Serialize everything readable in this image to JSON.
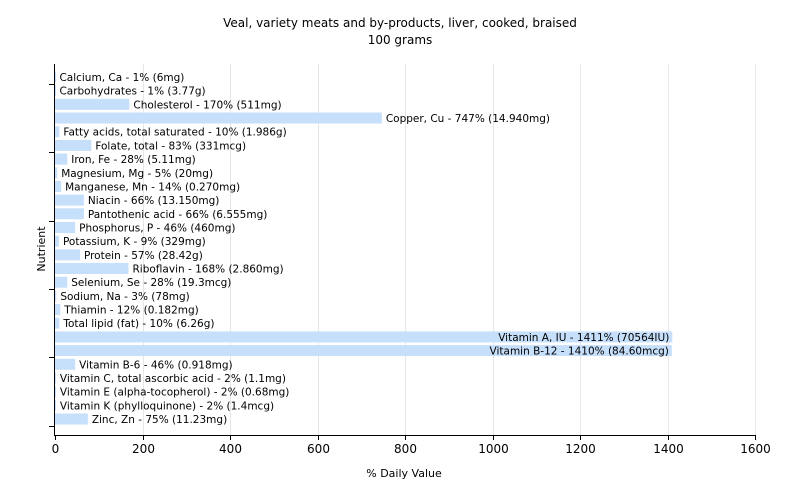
{
  "chart_data": {
    "type": "bar",
    "orientation": "horizontal",
    "title": "Veal, variety meats and by-products, liver, cooked, braised",
    "subtitle": "100 grams",
    "xlabel": "% Daily Value",
    "ylabel": "Nutrient",
    "xlim": [
      0,
      1600
    ],
    "xticks": [
      "0",
      "200",
      "400",
      "600",
      "800",
      "1000",
      "1200",
      "1400",
      "1600"
    ],
    "grid": "vertical",
    "bar_color": "#c6dffb",
    "categories": [
      "Calcium, Ca",
      "Carbohydrates",
      "Cholesterol",
      "Copper, Cu",
      "Fatty acids, total saturated",
      "Folate, total",
      "Iron, Fe",
      "Magnesium, Mg",
      "Manganese, Mn",
      "Niacin",
      "Pantothenic acid",
      "Phosphorus, P",
      "Potassium, K",
      "Protein",
      "Riboflavin",
      "Selenium, Se",
      "Sodium, Na",
      "Thiamin",
      "Total lipid (fat)",
      "Vitamin A, IU",
      "Vitamin B-12",
      "Vitamin B-6",
      "Vitamin C, total ascorbic acid",
      "Vitamin E (alpha-tocopherol)",
      "Vitamin K (phylloquinone)",
      "Zinc, Zn"
    ],
    "values": [
      1,
      1,
      170,
      747,
      10,
      83,
      28,
      5,
      14,
      66,
      66,
      46,
      9,
      57,
      168,
      28,
      3,
      12,
      10,
      1411,
      1410,
      46,
      2,
      2,
      2,
      75
    ],
    "labels": [
      "Calcium, Ca - 1% (6mg)",
      "Carbohydrates - 1% (3.77g)",
      "Cholesterol - 170% (511mg)",
      "Copper, Cu - 747% (14.940mg)",
      "Fatty acids, total saturated - 10% (1.986g)",
      "Folate, total - 83% (331mcg)",
      "Iron, Fe - 28% (5.11mg)",
      "Magnesium, Mg - 5% (20mg)",
      "Manganese, Mn - 14% (0.270mg)",
      "Niacin - 66% (13.150mg)",
      "Pantothenic acid - 66% (6.555mg)",
      "Phosphorus, P - 46% (460mg)",
      "Potassium, K - 9% (329mg)",
      "Protein - 57% (28.42g)",
      "Riboflavin - 168% (2.860mg)",
      "Selenium, Se - 28% (19.3mcg)",
      "Sodium, Na - 3% (78mg)",
      "Thiamin - 12% (0.182mg)",
      "Total lipid (fat) - 10% (6.26g)",
      "Vitamin A, IU - 1411% (70564IU)",
      "Vitamin B-12 - 1410% (84.60mcg)",
      "Vitamin B-6 - 46% (0.918mg)",
      "Vitamin C, total ascorbic acid - 2% (1.1mg)",
      "Vitamin E (alpha-tocopherol) - 2% (0.68mg)",
      "Vitamin K (phylloquinone) - 2% (1.4mcg)",
      "Zinc, Zn - 75% (11.23mg)"
    ]
  }
}
